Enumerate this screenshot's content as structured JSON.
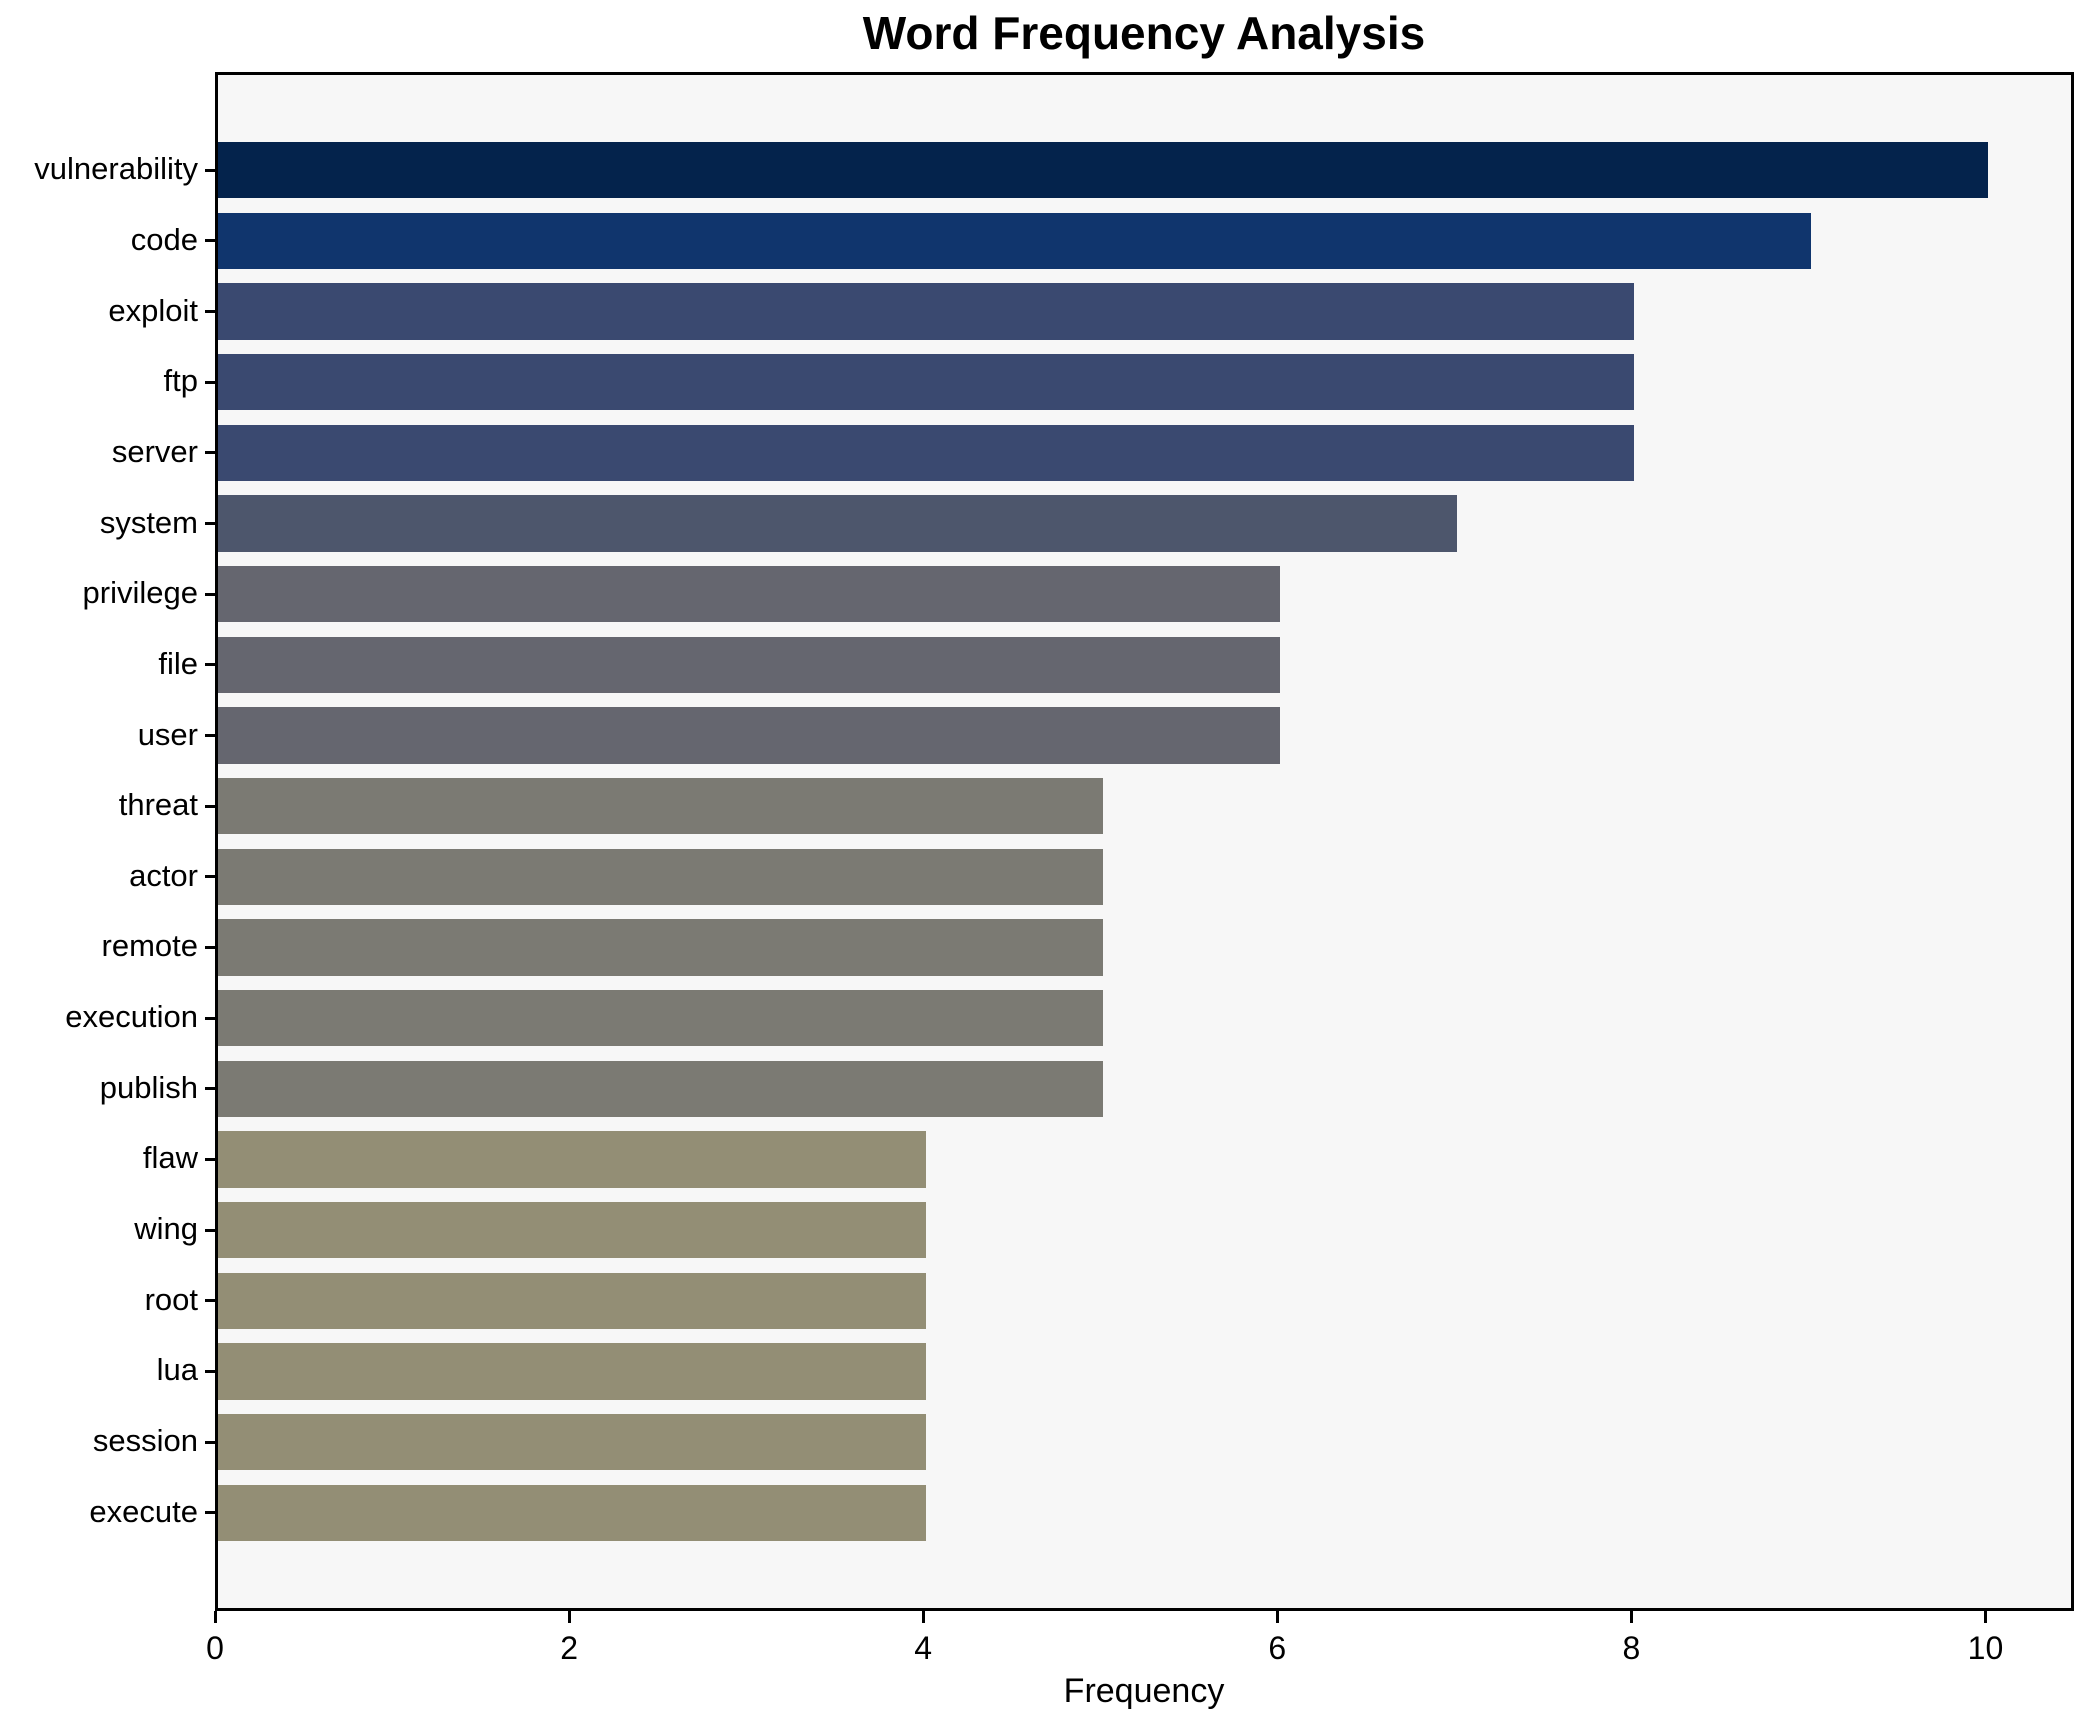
{
  "chart_data": {
    "type": "bar",
    "orientation": "horizontal",
    "title": "Word Frequency Analysis",
    "xlabel": "Frequency",
    "ylabel": "",
    "categories": [
      "vulnerability",
      "code",
      "exploit",
      "ftp",
      "server",
      "system",
      "privilege",
      "file",
      "user",
      "threat",
      "actor",
      "remote",
      "execution",
      "publish",
      "flaw",
      "wing",
      "root",
      "lua",
      "session",
      "execute"
    ],
    "values": [
      10,
      9,
      8,
      8,
      8,
      7,
      6,
      6,
      6,
      5,
      5,
      5,
      5,
      5,
      4,
      4,
      4,
      4,
      4,
      4
    ],
    "bar_colors": [
      "#04234c",
      "#10356d",
      "#3a4970",
      "#3a4970",
      "#3a4970",
      "#4d566c",
      "#65666f",
      "#65666f",
      "#65666f",
      "#7b7a73",
      "#7b7a73",
      "#7b7a73",
      "#7b7a73",
      "#7b7a73",
      "#938e75",
      "#938e75",
      "#938e75",
      "#938e75",
      "#938e75",
      "#938e75"
    ],
    "xlim": [
      0,
      10.5
    ],
    "xticks": [
      0,
      2,
      4,
      6,
      8,
      10
    ],
    "grid": false,
    "legend": false,
    "plot_background": "#f7f7f7",
    "figure_background": "#ffffff",
    "spine_color": "#000000",
    "text_color": "#000000"
  }
}
